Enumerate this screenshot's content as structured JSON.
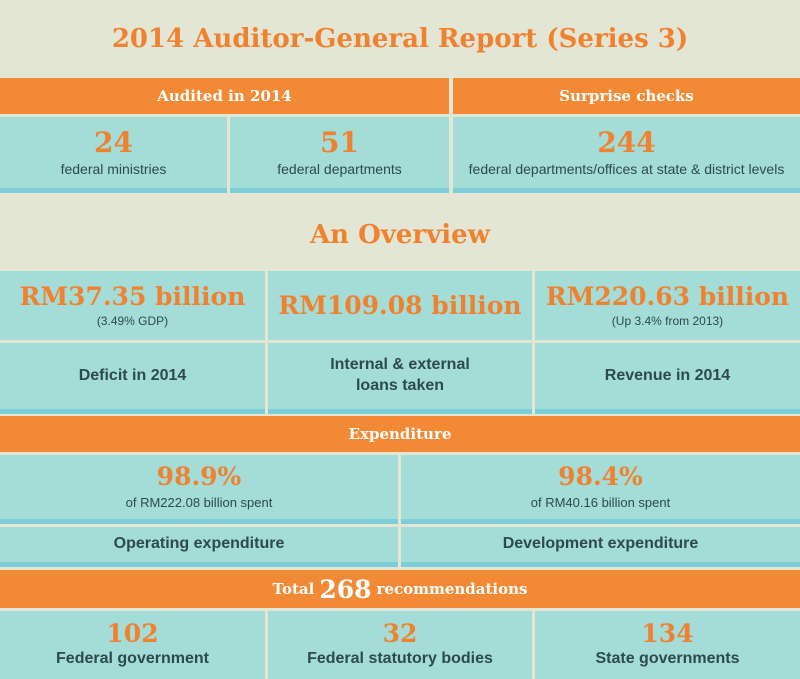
{
  "title": "2014 Auditor-General Report (Series 3)",
  "audited": {
    "header": "Audited in 2014",
    "items": [
      {
        "value": "24",
        "label": "federal ministries"
      },
      {
        "value": "51",
        "label": "federal departments"
      }
    ]
  },
  "surprise": {
    "header": "Surprise checks",
    "value": "244",
    "label": "federal departments/offices at state & district levels"
  },
  "overview": {
    "title": "An Overview",
    "items": [
      {
        "value": "RM37.35 billion",
        "sub": "(3.49% GDP)",
        "label": "Deficit in 2014"
      },
      {
        "value": "RM109.08 billion",
        "sub": "",
        "label_line1": "Internal & external",
        "label_line2": "loans taken"
      },
      {
        "value": "RM220.63 billion",
        "sub": "(Up 3.4% from 2013)",
        "label": "Revenue in 2014"
      }
    ]
  },
  "expenditure": {
    "header": "Expenditure",
    "items": [
      {
        "value": "98.9%",
        "sub": "of RM222.08 billion spent",
        "label": "Operating expenditure"
      },
      {
        "value": "98.4%",
        "sub": "of RM40.16 billion spent",
        "label": "Development expenditure"
      }
    ]
  },
  "recommendations": {
    "prefix": "Total",
    "total": "268",
    "suffix": "recommendations",
    "items": [
      {
        "value": "102",
        "label": "Federal government"
      },
      {
        "value": "32",
        "label": "Federal statutory bodies"
      },
      {
        "value": "134",
        "label": "State governments"
      }
    ]
  }
}
